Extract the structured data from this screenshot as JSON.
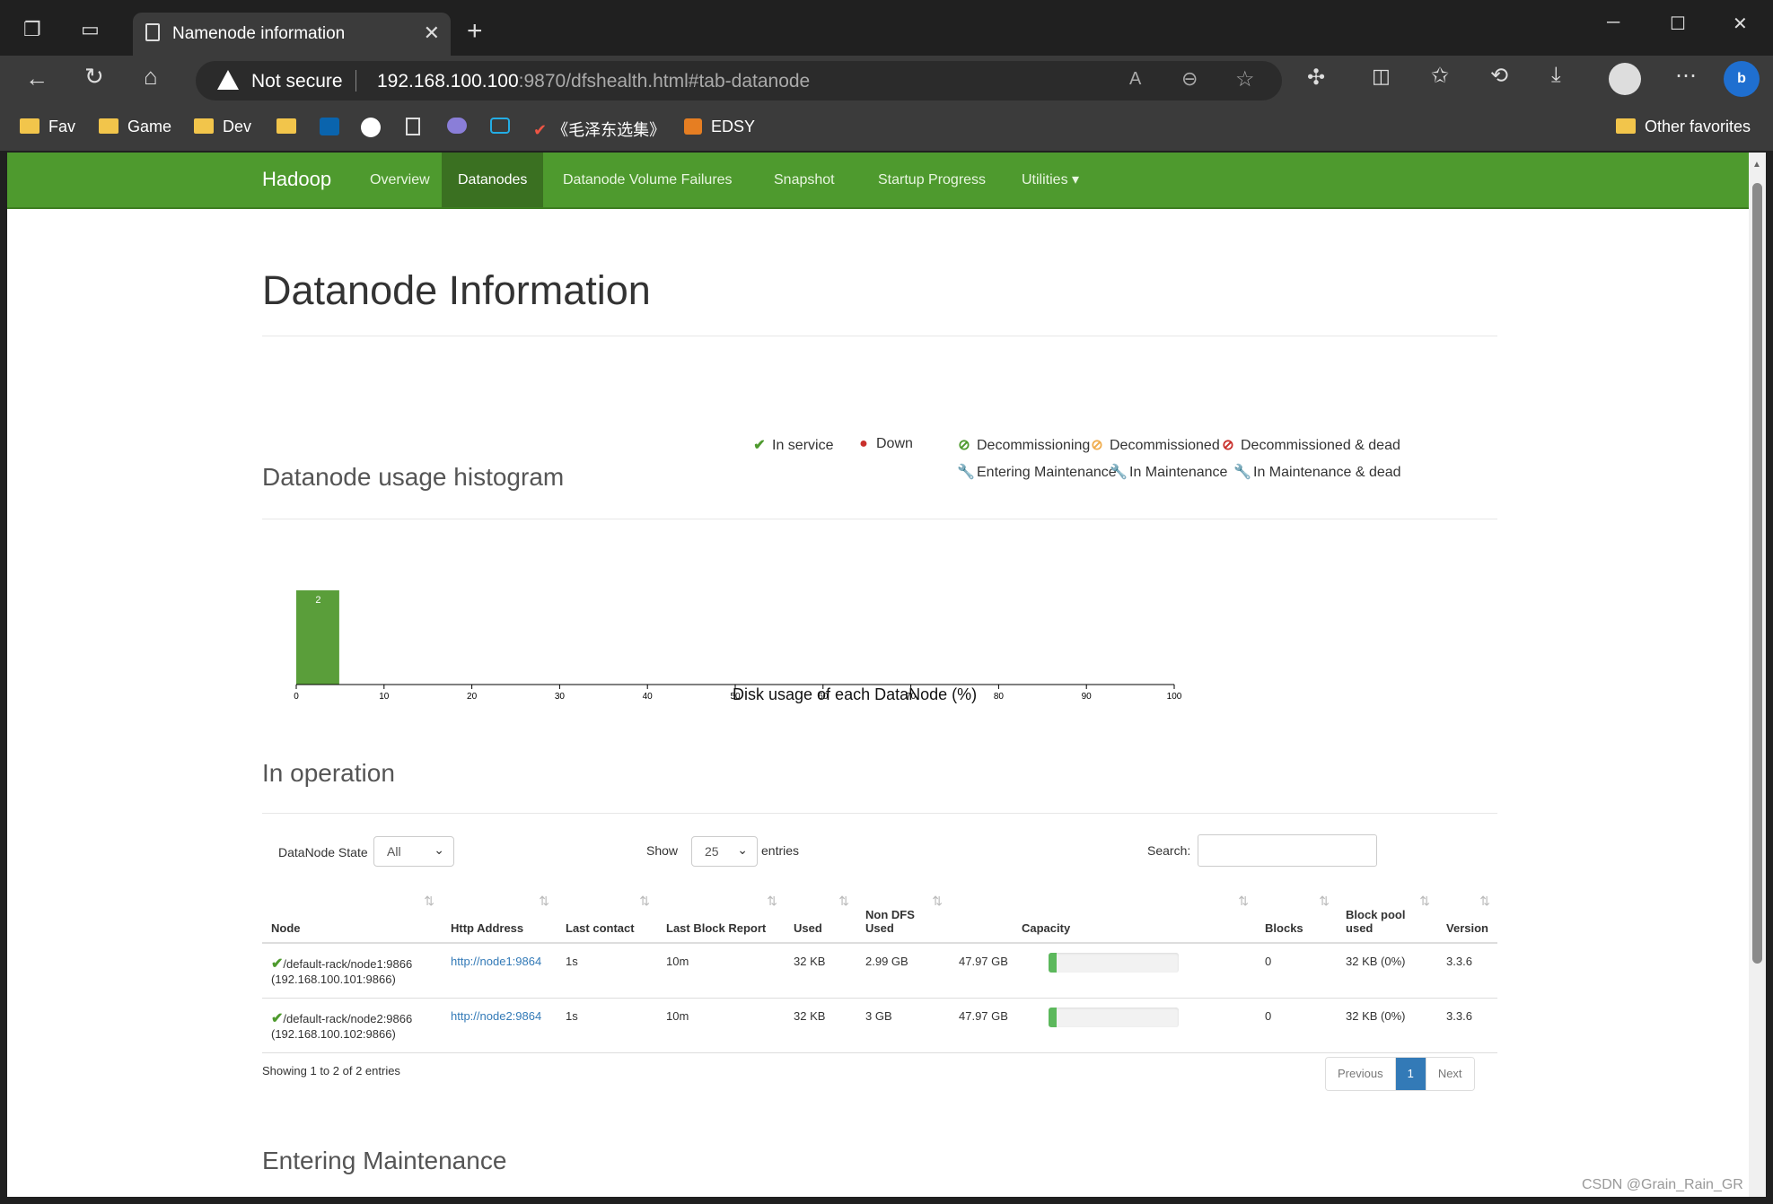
{
  "browser": {
    "tab_title": "Namenode information",
    "close_glyph": "✕",
    "newtab_glyph": "+",
    "security_label": "Not secure",
    "url_host": "192.168.100.100",
    "url_rest": ":9870/dfshealth.html#tab-datanode",
    "favorites": [
      "Fav",
      "Game",
      "Dev",
      "《毛泽东选集》",
      "EDSY"
    ],
    "other_favorites": "Other favorites"
  },
  "navbar": {
    "brand": "Hadoop",
    "items": [
      "Overview",
      "Datanodes",
      "Datanode Volume Failures",
      "Snapshot",
      "Startup Progress",
      "Utilities ▾"
    ],
    "active": "Datanodes"
  },
  "page": {
    "title": "Datanode Information",
    "legend": [
      {
        "label": "In service",
        "icon": "check-icon",
        "color": "#4e9a2e",
        "glyph": "✔"
      },
      {
        "label": "Down",
        "icon": "exclamation-icon",
        "color": "#c9302c",
        "glyph": "●"
      },
      {
        "label": "Decommissioning",
        "icon": "ban-icon",
        "color": "#4e9a2e",
        "glyph": "⊘"
      },
      {
        "label": "Decommissioned",
        "icon": "ban-icon",
        "color": "#f0ad4e",
        "glyph": "⊘"
      },
      {
        "label": "Decommissioned & dead",
        "icon": "ban-icon",
        "color": "#c9302c",
        "glyph": "⊘"
      },
      {
        "label": "Entering Maintenance",
        "icon": "wrench-icon",
        "color": "#4e9a2e",
        "glyph": "🔧"
      },
      {
        "label": "In Maintenance",
        "icon": "wrench-icon",
        "color": "#f0ad4e",
        "glyph": "🔧"
      },
      {
        "label": "In Maintenance & dead",
        "icon": "wrench-icon",
        "color": "#c9302c",
        "glyph": "🔧"
      }
    ],
    "histogram_heading": "Datanode usage histogram",
    "operation_heading": "In operation",
    "entering_heading": "Entering Maintenance",
    "controls": {
      "state_label": "DataNode State",
      "state_value": "All",
      "show_label": "Show",
      "show_value": "25",
      "entries_label": "entries",
      "search_label": "Search:"
    },
    "table": {
      "headers": [
        "Node",
        "Http Address",
        "Last contact",
        "Last Block Report",
        "Used",
        "Non DFS Used",
        "Capacity",
        "Blocks",
        "Block pool used",
        "Version"
      ],
      "rows": [
        {
          "node": "/default-rack/node1:9866",
          "node_ip": "(192.168.100.101:9866)",
          "http": "http://node1:9864",
          "last_contact": "1s",
          "last_block": "10m",
          "used": "32 KB",
          "non_dfs": "2.99 GB",
          "capacity": "47.97 GB",
          "usage_fraction": 0.06,
          "blocks": "0",
          "pool_used": "32 KB (0%)",
          "version": "3.3.6"
        },
        {
          "node": "/default-rack/node2:9866",
          "node_ip": "(192.168.100.102:9866)",
          "http": "http://node2:9864",
          "last_contact": "1s",
          "last_block": "10m",
          "used": "32 KB",
          "non_dfs": "3 GB",
          "capacity": "47.97 GB",
          "usage_fraction": 0.06,
          "blocks": "0",
          "pool_used": "32 KB (0%)",
          "version": "3.3.6"
        }
      ]
    },
    "showing": "Showing 1 to 2 of 2 entries",
    "pager": {
      "previous": "Previous",
      "current": "1",
      "next": "Next"
    }
  },
  "chart_data": {
    "type": "bar",
    "x_ticks": [
      0,
      10,
      20,
      30,
      40,
      50,
      60,
      70,
      80,
      90,
      100
    ],
    "xlim": [
      0,
      100
    ],
    "bins": [
      {
        "x0": 0,
        "x1": 5,
        "count": 2
      }
    ],
    "xlabel": "Disk usage of each DataNode (%)",
    "bar_color": "#5a9e3a"
  },
  "watermark": "CSDN @Grain_Rain_GR"
}
